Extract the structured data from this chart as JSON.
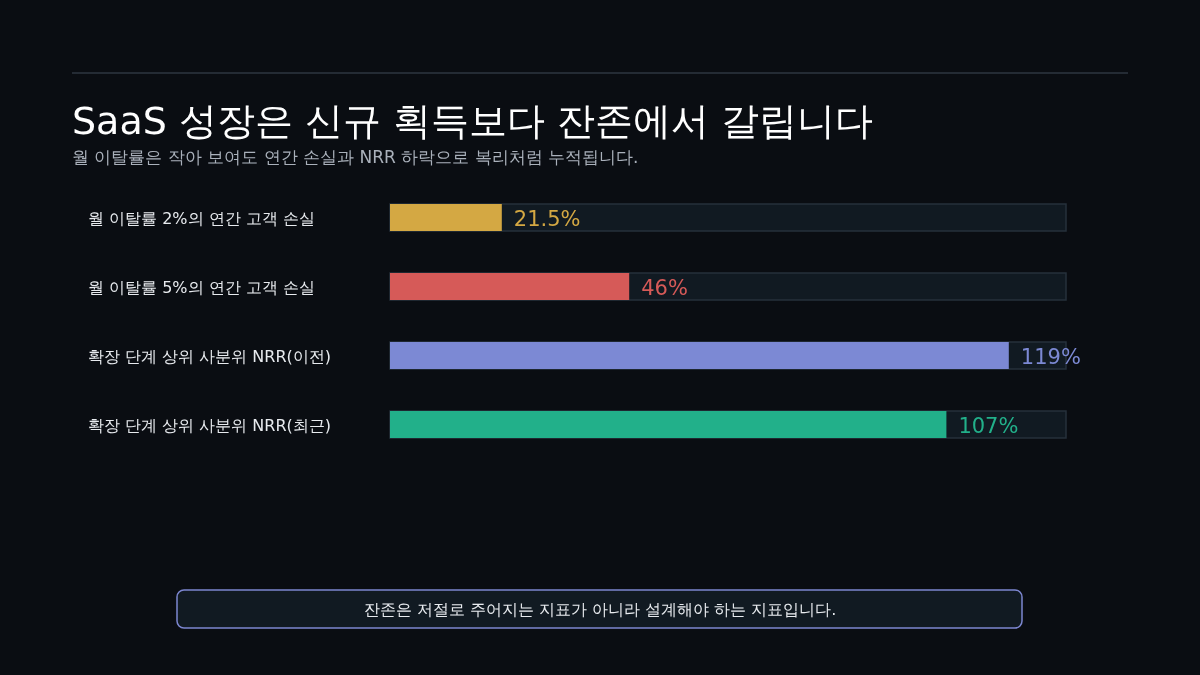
{
  "chart_data": {
    "type": "bar",
    "orientation": "horizontal",
    "title": "SaaS 성장은 신규 획득보다 잔존에서 갈립니다",
    "subtitle": "월 이탈률은 작아 보여도 연간 손실과 NRR 하락으로 복리처럼 누적됩니다.",
    "categories": [
      "월 이탈률 2%의 연간 고객 손실",
      "월 이탈률 5%의 연간 고객 손실",
      "확장 단계 상위 사분위 NRR(이전)",
      "확장 단계 상위 사분위 NRR(최근)"
    ],
    "values": [
      21.5,
      46,
      119,
      107
    ],
    "colors": [
      "#d4a843",
      "#d65a58",
      "#7c89d4",
      "#22b08a"
    ],
    "value_labels": [
      "21.5%",
      "46%",
      "119%",
      "107%"
    ],
    "xlim": [
      0,
      130
    ],
    "annotations": [
      "잔존은 저절로 주어지는 지표가 아니라 설계해야 하는 지표입니다."
    ]
  }
}
